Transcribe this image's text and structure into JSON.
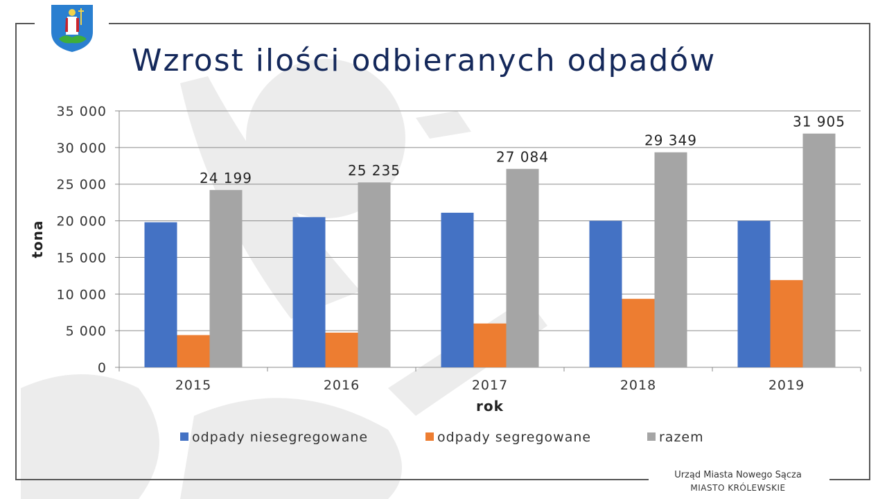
{
  "header": {
    "title": "Wzrost ilości odbieranych odpadów",
    "logo": "coat-of-arms-icon"
  },
  "footer": {
    "line1": "Urząd Miasta Nowego Sącza",
    "line2": "MIASTO KRÓLEWSKIE"
  },
  "colors": {
    "title": "#14285a",
    "series_1": "#4472c4",
    "series_2": "#ed7d31",
    "series_3": "#a5a5a5"
  },
  "chart_data": {
    "type": "bar",
    "title": "Wzrost ilości odbieranych odpadów",
    "xlabel": "rok",
    "ylabel": "tona",
    "categories": [
      "2015",
      "2016",
      "2017",
      "2018",
      "2019"
    ],
    "series": [
      {
        "name": "odpady niesegregowane",
        "color": "#4472c4",
        "values": [
          19800,
          20500,
          21100,
          20000,
          20000
        ]
      },
      {
        "name": "odpady segregowane",
        "color": "#ed7d31",
        "values": [
          4400,
          4735,
          5984,
          9349,
          11905
        ]
      },
      {
        "name": "razem",
        "color": "#a5a5a5",
        "values": [
          24199,
          25235,
          27084,
          29349,
          31905
        ],
        "data_labels": [
          "24 199",
          "25 235",
          "27 084",
          "29 349",
          "31 905"
        ]
      }
    ],
    "yticks": [
      0,
      5000,
      10000,
      15000,
      20000,
      25000,
      30000,
      35000
    ],
    "ytick_labels": [
      "0",
      "5 000",
      "10 000",
      "15 000",
      "20 000",
      "25 000",
      "30 000",
      "35 000"
    ],
    "ylim": [
      0,
      35000
    ],
    "grid": true,
    "legend_position": "bottom"
  }
}
